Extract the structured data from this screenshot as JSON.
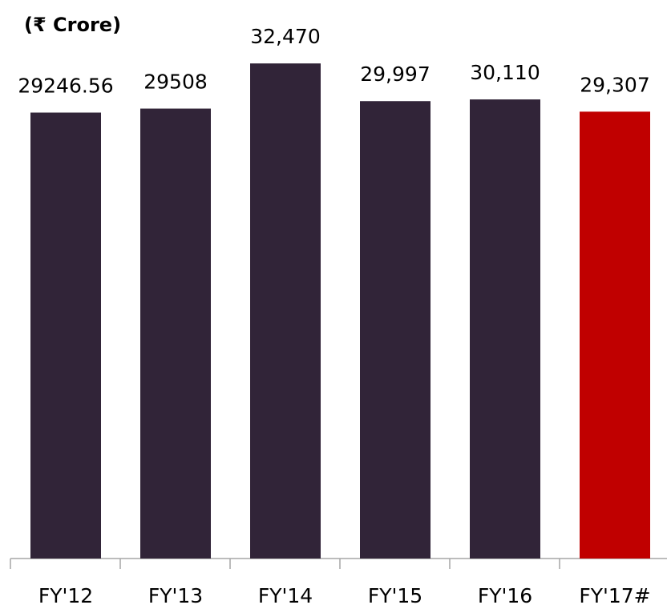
{
  "chart_data": {
    "type": "bar",
    "title": "(₹ Crore)",
    "categories": [
      "FY'12",
      "FY'13",
      "FY'14",
      "FY'15",
      "FY'16",
      "FY'17#"
    ],
    "values": [
      29246.56,
      29508,
      32470,
      29997,
      30110,
      29307
    ],
    "value_labels": [
      "29246.56",
      "29508",
      "32,470",
      "29,997",
      "30,110",
      "29,307"
    ],
    "colors": [
      "#312438",
      "#312438",
      "#312438",
      "#312438",
      "#312438",
      "#c00000"
    ],
    "ylim": [
      0,
      36000
    ]
  }
}
